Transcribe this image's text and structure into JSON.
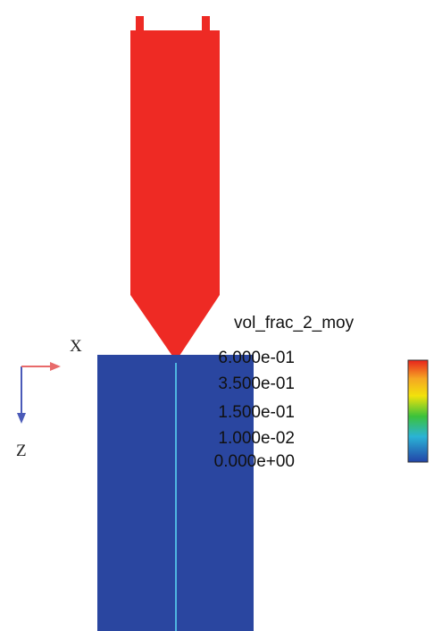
{
  "legend": {
    "title": "vol_frac_2_moy",
    "ticks": [
      "6.000e-01",
      "3.500e-01",
      "1.500e-01",
      "1.000e-02",
      "0.000e+00"
    ],
    "colormap": [
      "#e8231c",
      "#f5a623",
      "#f2e20c",
      "#3cc23a",
      "#2ab3d6",
      "#2244a8"
    ]
  },
  "axes": {
    "x_label": "X",
    "z_label": "Z",
    "x_arrow_color": "#e86a6a",
    "z_arrow_color": "#4a5ab8"
  },
  "colors": {
    "nozzle": "#ee2a24",
    "substrate": "#2a46a0",
    "centerline": "#4fb6e0",
    "tip": "#c9c43a"
  }
}
